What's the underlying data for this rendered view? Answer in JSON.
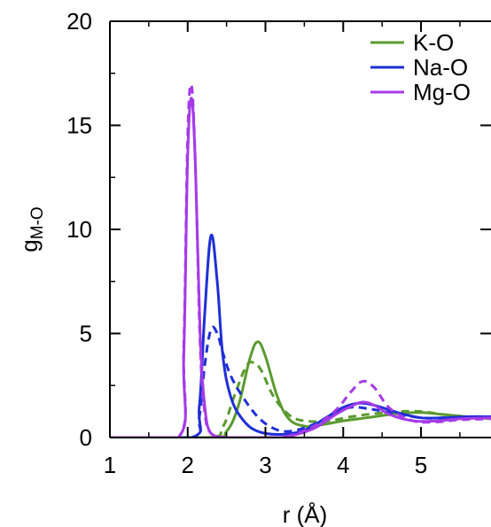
{
  "chart_data": {
    "type": "line",
    "xlabel": "r (Å)",
    "ylabel": {
      "main": "g",
      "subscript": "M-O"
    },
    "xlim": [
      1,
      5.9
    ],
    "ylim": [
      0,
      20
    ],
    "xticks": [
      1,
      2,
      3,
      4,
      5
    ],
    "yticks": [
      0,
      5,
      10,
      15,
      20
    ],
    "grid": false,
    "legend": {
      "placement": "top-right",
      "entries": [
        {
          "name": "K-O",
          "color": "#5a9a2e"
        },
        {
          "name": "Na-O",
          "color": "#1f2fd6"
        },
        {
          "name": "Mg-O",
          "color": "#a53ae8"
        }
      ]
    },
    "series": [
      {
        "name": "K-O",
        "style": "solid",
        "color": "#5a9a2e",
        "x": [
          1.0,
          2.3,
          2.5,
          2.65,
          2.8,
          2.9,
          3.0,
          3.15,
          3.3,
          3.5,
          3.7,
          4.0,
          4.3,
          4.7,
          5.0,
          5.3,
          5.6,
          5.9
        ],
        "y": [
          0,
          0,
          0.3,
          1.5,
          3.8,
          4.6,
          3.9,
          2.0,
          0.9,
          0.55,
          0.6,
          0.8,
          0.95,
          1.15,
          1.2,
          1.1,
          1.0,
          0.95
        ]
      },
      {
        "name": "K-O",
        "style": "dashed",
        "color": "#5a9a2e",
        "x": [
          1.0,
          2.25,
          2.45,
          2.6,
          2.75,
          2.85,
          2.95,
          3.1,
          3.3,
          3.5,
          3.8,
          4.1,
          4.4,
          4.7,
          5.0,
          5.3,
          5.6,
          5.9
        ],
        "y": [
          0,
          0,
          0.5,
          2.0,
          3.4,
          3.6,
          3.2,
          2.0,
          1.1,
          0.8,
          0.8,
          1.0,
          1.15,
          1.25,
          1.25,
          1.1,
          1.0,
          0.9
        ]
      },
      {
        "name": "Na-O",
        "style": "solid",
        "color": "#1f2fd6",
        "x": [
          1.0,
          2.05,
          2.15,
          2.22,
          2.3,
          2.38,
          2.45,
          2.55,
          2.7,
          2.9,
          3.2,
          3.5,
          3.8,
          4.0,
          4.2,
          4.4,
          4.7,
          5.0,
          5.3,
          5.6,
          5.9
        ],
        "y": [
          0,
          0,
          1.5,
          6.0,
          9.7,
          7.5,
          4.0,
          2.0,
          0.9,
          0.3,
          0.15,
          0.35,
          1.0,
          1.45,
          1.65,
          1.55,
          1.2,
          0.95,
          0.95,
          1.0,
          1.0
        ]
      },
      {
        "name": "Na-O",
        "style": "dashed",
        "color": "#1f2fd6",
        "x": [
          1.0,
          2.05,
          2.15,
          2.22,
          2.3,
          2.38,
          2.45,
          2.55,
          2.7,
          2.9,
          3.1,
          3.3,
          3.6,
          3.9,
          4.1,
          4.3,
          4.6,
          5.0,
          5.3,
          5.6,
          5.9
        ],
        "y": [
          0,
          0,
          1.0,
          3.5,
          5.2,
          5.0,
          4.1,
          3.0,
          2.0,
          1.0,
          0.45,
          0.3,
          0.6,
          1.2,
          1.45,
          1.4,
          1.2,
          0.95,
          0.95,
          1.0,
          1.0
        ]
      },
      {
        "name": "Mg-O",
        "style": "solid",
        "color": "#a53ae8",
        "x": [
          1.0,
          1.88,
          1.95,
          2.0,
          2.05,
          2.1,
          2.16,
          2.22,
          2.3,
          2.5,
          2.8,
          3.2,
          3.6,
          3.9,
          4.1,
          4.25,
          4.4,
          4.6,
          4.9,
          5.2,
          5.5,
          5.9
        ],
        "y": [
          0,
          0,
          4.0,
          13.5,
          16.3,
          13.0,
          5.0,
          1.5,
          0.2,
          0,
          0,
          0,
          0.4,
          1.1,
          1.5,
          1.7,
          1.55,
          1.1,
          0.8,
          0.8,
          0.9,
          0.95
        ]
      },
      {
        "name": "Mg-O",
        "style": "dashed",
        "color": "#a53ae8",
        "x": [
          1.0,
          1.88,
          1.95,
          2.0,
          2.05,
          2.1,
          2.16,
          2.22,
          2.3,
          2.5,
          2.8,
          3.2,
          3.6,
          3.9,
          4.1,
          4.25,
          4.4,
          4.6,
          4.9,
          5.2,
          5.5,
          5.9
        ],
        "y": [
          0,
          0,
          4.5,
          14.5,
          16.9,
          13.0,
          4.5,
          1.2,
          0.2,
          0,
          0,
          0,
          0.5,
          1.3,
          2.2,
          2.7,
          2.4,
          1.4,
          0.8,
          0.75,
          0.85,
          0.9
        ]
      }
    ]
  }
}
